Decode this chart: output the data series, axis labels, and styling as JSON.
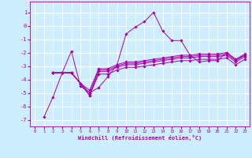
{
  "title": "",
  "xlabel": "Windchill (Refroidissement éolien,°C)",
  "background_color": "#cceeff",
  "line_color": "#aa00aa",
  "grid_color": "#ffffff",
  "x_ticks": [
    0,
    1,
    2,
    3,
    4,
    5,
    6,
    7,
    8,
    9,
    10,
    11,
    12,
    13,
    14,
    15,
    16,
    17,
    18,
    19,
    20,
    21,
    22,
    23
  ],
  "y_ticks": [
    1,
    0,
    -1,
    -2,
    -3,
    -4,
    -5,
    -6,
    -7
  ],
  "ylim": [
    -7.5,
    1.8
  ],
  "xlim": [
    -0.5,
    23.5
  ],
  "series": [
    [
      null,
      -6.8,
      -5.3,
      -3.5,
      -1.9,
      -4.5,
      -5.0,
      -4.6,
      -3.8,
      -2.9,
      -0.6,
      -0.1,
      0.3,
      1.0,
      -0.4,
      -1.1,
      -1.1,
      -2.2,
      -2.7,
      -2.6,
      -2.6,
      -2.0,
      -2.5,
      -2.2
    ],
    [
      null,
      null,
      -3.5,
      -3.5,
      -3.5,
      -4.3,
      -5.2,
      -3.6,
      -3.6,
      -3.3,
      -3.1,
      -3.1,
      -3.0,
      -2.9,
      -2.8,
      -2.7,
      -2.6,
      -2.6,
      -2.5,
      -2.5,
      -2.5,
      -2.4,
      -2.9,
      -2.5
    ],
    [
      null,
      null,
      -3.5,
      -3.5,
      -3.5,
      -4.3,
      -5.2,
      -3.4,
      -3.4,
      -3.1,
      -2.9,
      -2.9,
      -2.8,
      -2.7,
      -2.6,
      -2.5,
      -2.4,
      -2.4,
      -2.3,
      -2.3,
      -2.3,
      -2.2,
      -2.7,
      -2.3
    ],
    [
      null,
      null,
      -3.5,
      -3.5,
      -3.5,
      -4.3,
      -5.0,
      -3.3,
      -3.3,
      -3.0,
      -2.8,
      -2.8,
      -2.7,
      -2.6,
      -2.5,
      -2.4,
      -2.3,
      -2.3,
      -2.2,
      -2.2,
      -2.2,
      -2.1,
      -2.6,
      -2.2
    ],
    [
      null,
      null,
      -3.5,
      -3.5,
      -3.5,
      -4.3,
      -4.8,
      -3.2,
      -3.2,
      -2.9,
      -2.7,
      -2.7,
      -2.6,
      -2.5,
      -2.4,
      -2.3,
      -2.2,
      -2.2,
      -2.1,
      -2.1,
      -2.1,
      -2.0,
      -2.5,
      -2.1
    ]
  ]
}
